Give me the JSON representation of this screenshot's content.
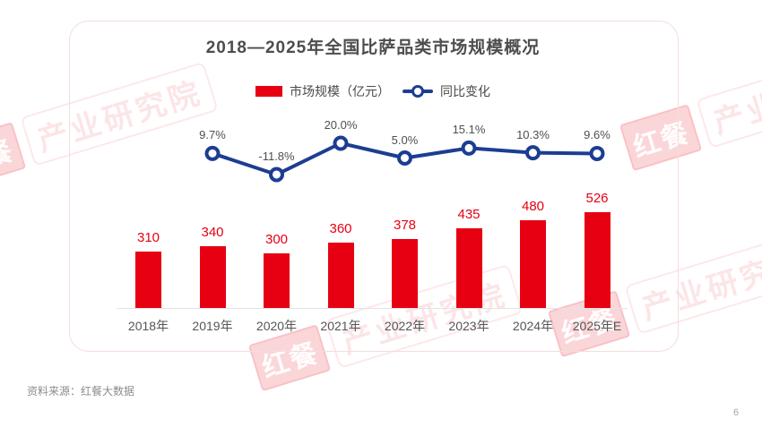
{
  "page": {
    "source": "资料来源：红餐大数据",
    "number": "6"
  },
  "watermark": {
    "badge": "红餐",
    "text": "产业研究院"
  },
  "chart_data": {
    "type": "bar",
    "title": "2018—2025年全国比萨品类市场规模概况",
    "categories": [
      "2018年",
      "2019年",
      "2020年",
      "2021年",
      "2022年",
      "2023年",
      "2024年",
      "2025年E"
    ],
    "series": [
      {
        "name": "市场规模（亿元）",
        "type": "bar",
        "color": "#e60012",
        "values": [
          310,
          340,
          300,
          360,
          378,
          435,
          480,
          526
        ]
      },
      {
        "name": "同比变化",
        "type": "line",
        "color": "#1c3d91",
        "values": [
          null,
          9.7,
          -11.8,
          20.0,
          5.0,
          15.1,
          10.3,
          9.6
        ],
        "labels": [
          "",
          "9.7%",
          "-11.8%",
          "20.0%",
          "5.0%",
          "15.1%",
          "10.3%",
          "9.6%"
        ]
      }
    ],
    "xlabel": "",
    "ylabel": "",
    "legend_position": "top",
    "grid": false
  }
}
